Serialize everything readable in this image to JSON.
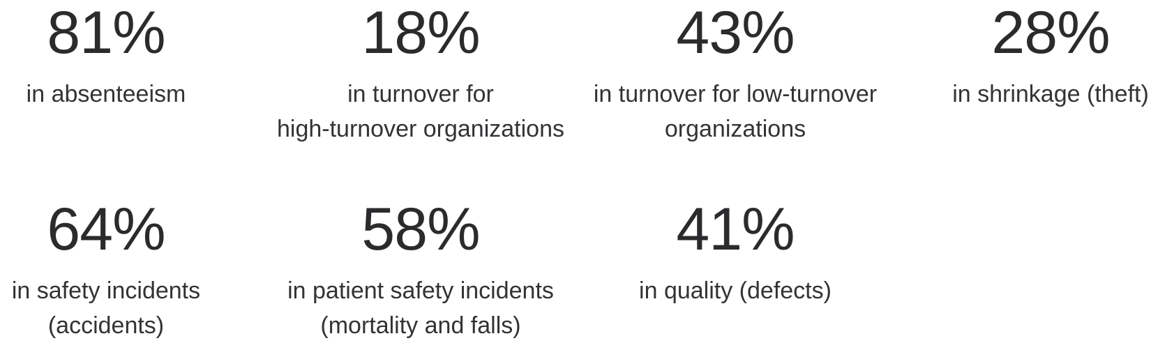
{
  "stats": [
    {
      "value": "81%",
      "label_lines": [
        "in absenteeism"
      ]
    },
    {
      "value": "18%",
      "label_lines": [
        "in turnover for",
        "high-turnover organizations"
      ]
    },
    {
      "value": "43%",
      "label_lines": [
        "in turnover for low-turnover",
        "organizations"
      ]
    },
    {
      "value": "28%",
      "label_lines": [
        "in shrinkage (theft)"
      ]
    },
    {
      "value": "64%",
      "label_lines": [
        "in safety incidents",
        "(accidents)"
      ]
    },
    {
      "value": "58%",
      "label_lines": [
        "in patient safety incidents",
        "(mortality and falls)"
      ]
    },
    {
      "value": "41%",
      "label_lines": [
        "in quality (defects)"
      ]
    }
  ]
}
